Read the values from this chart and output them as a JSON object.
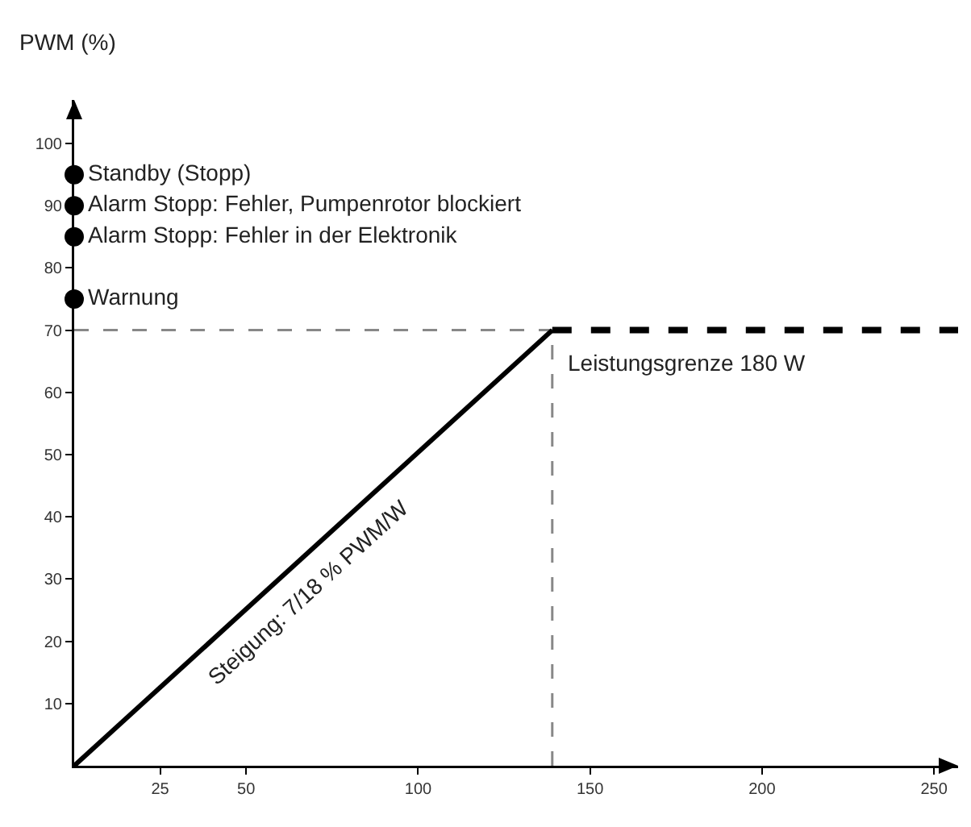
{
  "chart_data": {
    "type": "line",
    "ylabel": "PWM (%)",
    "xlim": [
      0,
      257
    ],
    "ylim": [
      0,
      107
    ],
    "xticks": [
      25,
      50,
      100,
      150,
      200,
      250
    ],
    "yticks": [
      10,
      20,
      30,
      40,
      50,
      60,
      70,
      80,
      90,
      100
    ],
    "grid": false,
    "series": [
      {
        "x": [
          0,
          139
        ],
        "values": [
          0,
          70
        ],
        "color": "#000000",
        "line_style": "solid"
      },
      {
        "x": [
          139,
          257
        ],
        "values": [
          70,
          70
        ],
        "color": "#000000",
        "line_style": "dashed"
      },
      {
        "type": "scatter",
        "x": [
          0,
          0,
          0,
          0
        ],
        "values": [
          95,
          90,
          85,
          75
        ],
        "color": "#000000",
        "marker": "circle",
        "value_labels": [
          "Standby (Stopp)",
          "Alarm Stopp: Fehler, Pumpenrotor blockiert",
          "Alarm Stopp: Fehler in der Elektronik",
          "Warnung"
        ]
      }
    ],
    "ref_lines": [
      {
        "axis": "y",
        "value": 70,
        "color": "#888888",
        "line_style": "dashed"
      },
      {
        "axis": "x",
        "value": 139,
        "color": "#888888",
        "line_style": "dashed"
      }
    ],
    "annotations": [
      "Leistungsgrenze 180 W",
      "Steigung: 7/18 % PWM/W"
    ]
  }
}
